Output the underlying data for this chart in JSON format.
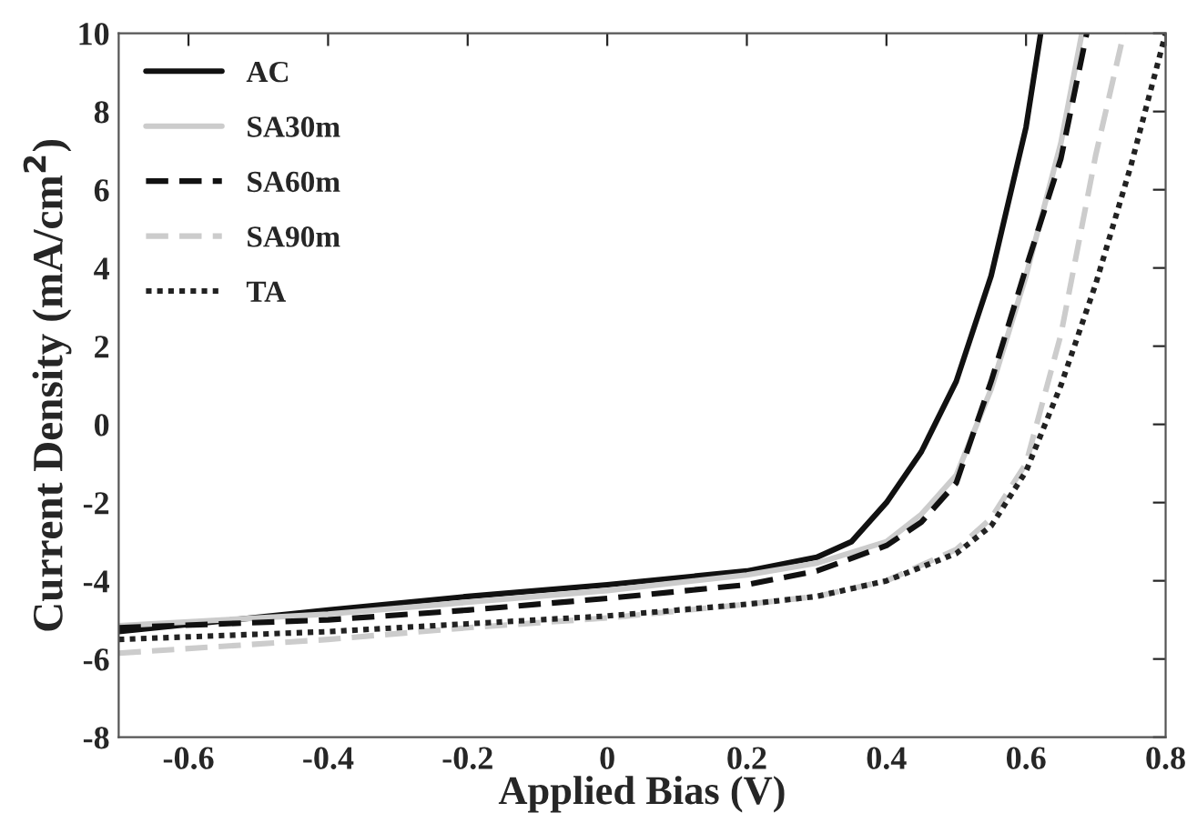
{
  "chart_data": {
    "type": "line",
    "xlabel": "Applied Bias (V)",
    "ylabel": "Current Density (mA/cm$^{2}$)",
    "xlim": [
      -0.7,
      0.8
    ],
    "xticks": [
      -0.6,
      -0.4,
      -0.2,
      0,
      0.2,
      0.4,
      0.6,
      0.8
    ],
    "ylim": [
      -8,
      10
    ],
    "yticks": [
      -8,
      -6,
      -4,
      -2,
      0,
      2,
      4,
      6,
      8,
      10
    ],
    "grid": false,
    "legend": "top left",
    "marker": "none",
    "series": [
      {
        "name": "AC",
        "color": "#111111",
        "line_style": "solid",
        "x": [
          -0.7,
          -0.4,
          -0.2,
          0,
          0.2,
          0.3,
          0.35,
          0.4,
          0.45,
          0.5,
          0.55,
          0.6,
          0.621
        ],
        "values": [
          -5.3,
          -4.75,
          -4.4,
          -4.1,
          -3.75,
          -3.4,
          -3.0,
          -2.0,
          -0.7,
          1.1,
          3.8,
          7.6,
          10
        ]
      },
      {
        "name": "SA30m",
        "color": "#cccccc",
        "line_style": "solid",
        "x": [
          -0.7,
          -0.4,
          -0.2,
          0,
          0.2,
          0.3,
          0.4,
          0.45,
          0.5,
          0.55,
          0.6,
          0.65,
          0.68
        ],
        "values": [
          -5.15,
          -4.85,
          -4.55,
          -4.25,
          -3.85,
          -3.55,
          -3.0,
          -2.3,
          -1.3,
          0.9,
          3.8,
          7.2,
          10
        ]
      },
      {
        "name": "SA60m",
        "color": "#111111",
        "line_style": "dashed",
        "x": [
          -0.7,
          -0.4,
          -0.2,
          0,
          0.2,
          0.3,
          0.4,
          0.45,
          0.5,
          0.55,
          0.6,
          0.65,
          0.687
        ],
        "values": [
          -5.2,
          -5.0,
          -4.75,
          -4.45,
          -4.1,
          -3.75,
          -3.1,
          -2.5,
          -1.5,
          1.1,
          4.0,
          6.8,
          10
        ]
      },
      {
        "name": "SA90m",
        "color": "#cccccc",
        "line_style": "dashed",
        "x": [
          -0.7,
          -0.4,
          -0.2,
          0,
          0.2,
          0.3,
          0.4,
          0.5,
          0.55,
          0.6,
          0.65,
          0.7,
          0.74
        ],
        "values": [
          -5.85,
          -5.5,
          -5.2,
          -4.95,
          -4.6,
          -4.4,
          -4.0,
          -3.2,
          -2.4,
          -1.0,
          2.3,
          6.9,
          10
        ]
      },
      {
        "name": "TA",
        "color": "#222222",
        "line_style": "dotted",
        "x": [
          -0.7,
          -0.4,
          -0.2,
          0,
          0.2,
          0.3,
          0.4,
          0.5,
          0.55,
          0.6,
          0.65,
          0.7,
          0.75,
          0.8
        ],
        "values": [
          -5.5,
          -5.3,
          -5.1,
          -4.9,
          -4.6,
          -4.4,
          -4.0,
          -3.3,
          -2.6,
          -1.2,
          1.0,
          3.6,
          6.6,
          10
        ]
      }
    ]
  }
}
